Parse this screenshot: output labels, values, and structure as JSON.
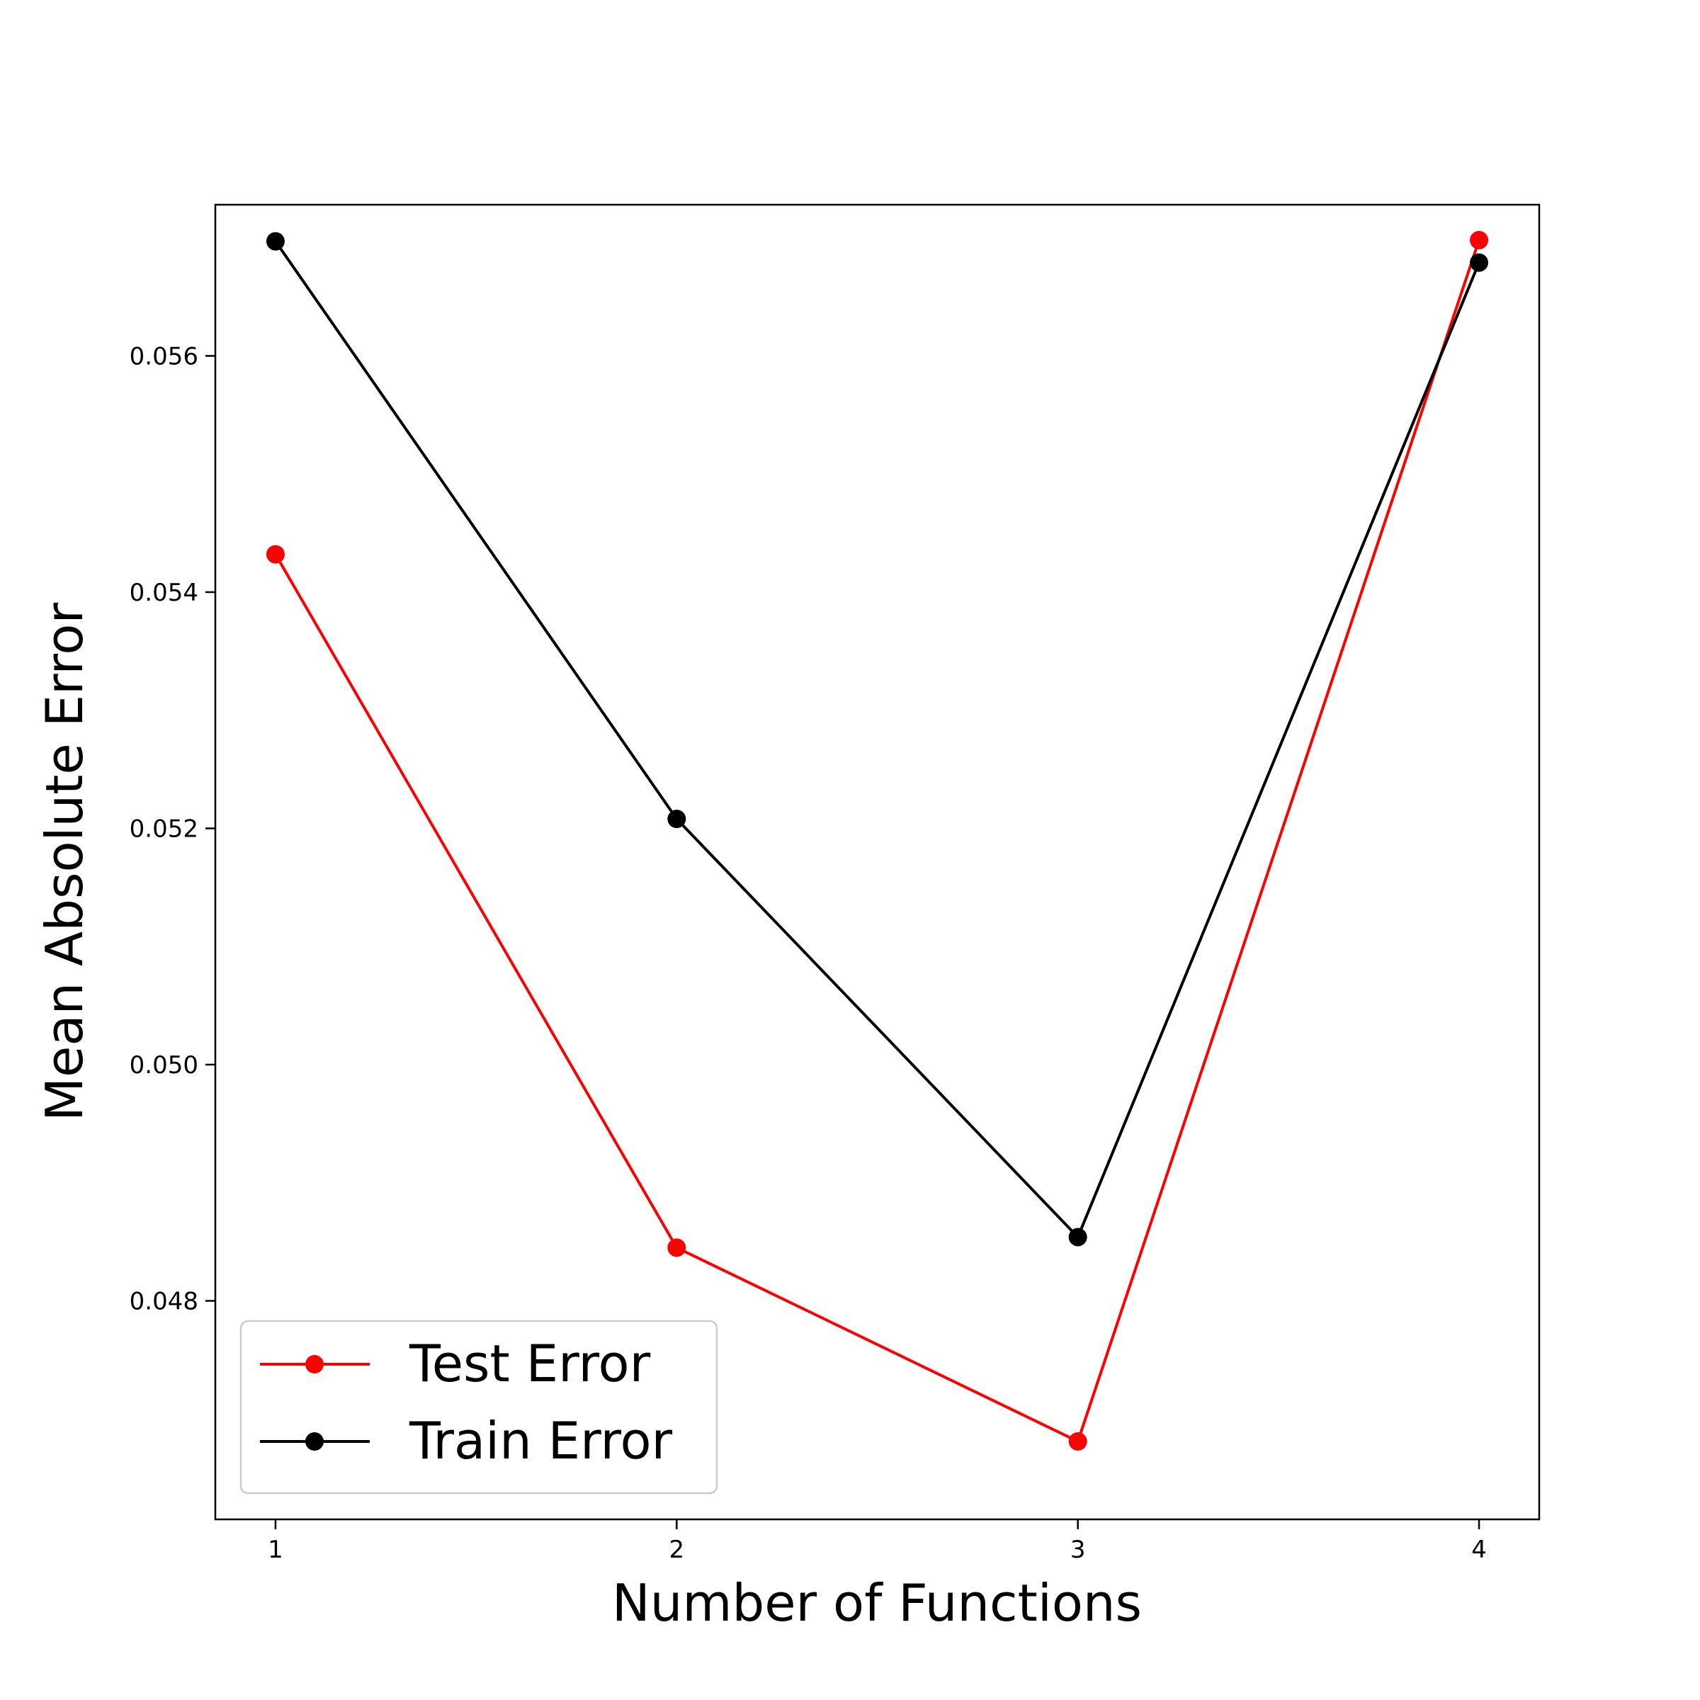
{
  "chart_data": {
    "type": "line",
    "x": [
      1,
      2,
      3,
      4
    ],
    "xticks": [
      "1",
      "2",
      "3",
      "4"
    ],
    "yticks": [
      0.048,
      0.05,
      0.052,
      0.054,
      0.056
    ],
    "ytick_labels": [
      "0.048",
      "0.050",
      "0.052",
      "0.054",
      "0.056"
    ],
    "xlim": [
      0.85,
      4.15
    ],
    "ylim": [
      0.04615,
      0.05728
    ],
    "xlabel": "Number of Functions",
    "ylabel": "Mean Absolute Error",
    "title": "",
    "grid": false,
    "legend_position": "lower-left",
    "series": [
      {
        "name": "Test Error",
        "color": "#ff0000",
        "marker": "circle",
        "values": [
          0.05432,
          0.04845,
          0.04681,
          0.05698
        ]
      },
      {
        "name": "Train Error",
        "color": "#000000",
        "marker": "circle",
        "values": [
          0.05697,
          0.05208,
          0.04854,
          0.05679
        ]
      }
    ]
  }
}
